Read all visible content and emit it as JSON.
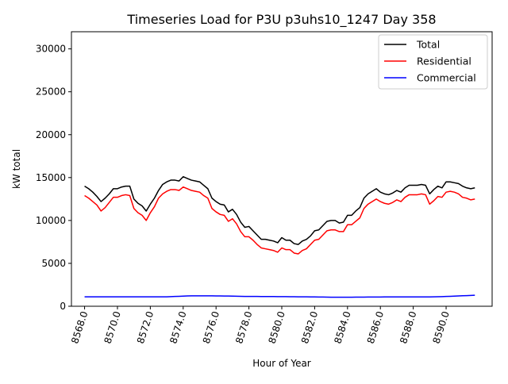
{
  "chart_data": {
    "type": "line",
    "title": "Timeseries Load for P3U p3uhs10_1247  Day 358",
    "xlabel": "Hour of Year",
    "ylabel": "kW total",
    "xlim": [
      8567.2,
      8592.8
    ],
    "ylim": [
      0,
      32000
    ],
    "x_ticks": [
      8568,
      8570,
      8572,
      8574,
      8576,
      8578,
      8580,
      8582,
      8584,
      8586,
      8588,
      8590
    ],
    "x_tick_labels": [
      "8568.0",
      "8570.0",
      "8572.0",
      "8574.0",
      "8576.0",
      "8578.0",
      "8580.0",
      "8582.0",
      "8584.0",
      "8586.0",
      "8588.0",
      "8590.0"
    ],
    "y_ticks": [
      0,
      5000,
      10000,
      15000,
      20000,
      25000,
      30000
    ],
    "y_tick_labels": [
      "0",
      "5000",
      "10000",
      "15000",
      "20000",
      "25000",
      "30000"
    ],
    "grid": false,
    "legend_position": "top-right",
    "x_start": 8568,
    "x_step": 0.25,
    "series": [
      {
        "name": "Total",
        "color": "#000000",
        "values": [
          14000,
          13700,
          13300,
          12800,
          12200,
          12600,
          13100,
          13700,
          13700,
          13900,
          14000,
          14000,
          12500,
          12000,
          11700,
          11100,
          11900,
          12600,
          13500,
          14200,
          14500,
          14700,
          14700,
          14600,
          15100,
          14900,
          14700,
          14600,
          14500,
          14100,
          13700,
          12600,
          12200,
          11900,
          11800,
          11000,
          11300,
          10700,
          9800,
          9200,
          9300,
          8800,
          8300,
          7800,
          7800,
          7700,
          7600,
          7400,
          8000,
          7700,
          7700,
          7300,
          7200,
          7600,
          7800,
          8200,
          8800,
          8900,
          9400,
          9900,
          10000,
          10000,
          9700,
          9800,
          10600,
          10600,
          11100,
          11500,
          12600,
          13100,
          13400,
          13700,
          13300,
          13100,
          13000,
          13200,
          13500,
          13300,
          13800,
          14100,
          14100,
          14100,
          14200,
          14100,
          13100,
          13600,
          14000,
          13800,
          14500,
          14500,
          14400,
          14300,
          14000,
          13800,
          13700,
          13800
        ],
        "values_in_steps_of_x_step": true
      },
      {
        "name": "Residential",
        "color": "#ff0000",
        "values": [
          12900,
          12600,
          12200,
          11800,
          11100,
          11500,
          12100,
          12700,
          12700,
          12900,
          13000,
          12900,
          11400,
          10900,
          10600,
          10000,
          10900,
          11600,
          12600,
          13100,
          13400,
          13600,
          13600,
          13500,
          13900,
          13700,
          13500,
          13400,
          13300,
          12900,
          12600,
          11400,
          11000,
          10700,
          10600,
          9900,
          10200,
          9600,
          8700,
          8100,
          8100,
          7700,
          7200,
          6800,
          6700,
          6600,
          6500,
          6300,
          6800,
          6600,
          6600,
          6200,
          6100,
          6500,
          6700,
          7200,
          7700,
          7800,
          8300,
          8800,
          8900,
          8900,
          8700,
          8700,
          9500,
          9500,
          9900,
          10300,
          11400,
          11900,
          12200,
          12500,
          12200,
          12000,
          11900,
          12100,
          12400,
          12200,
          12700,
          13000,
          13000,
          13000,
          13100,
          13000,
          11900,
          12300,
          12800,
          12700,
          13300,
          13400,
          13300,
          13100,
          12700,
          12600,
          12400,
          12500
        ],
        "values_in_steps_of_x_step": true
      },
      {
        "name": "Commercial",
        "color": "#0000ff",
        "values": [
          1100,
          1100,
          1100,
          1100,
          1100,
          1100,
          1100,
          1100,
          1100,
          1100,
          1100,
          1100,
          1100,
          1100,
          1100,
          1100,
          1100,
          1100,
          1100,
          1100,
          1100,
          1120,
          1140,
          1160,
          1180,
          1200,
          1210,
          1210,
          1210,
          1210,
          1210,
          1210,
          1200,
          1200,
          1190,
          1190,
          1180,
          1170,
          1160,
          1150,
          1150,
          1140,
          1140,
          1130,
          1130,
          1130,
          1130,
          1120,
          1120,
          1120,
          1110,
          1110,
          1100,
          1100,
          1100,
          1090,
          1090,
          1080,
          1070,
          1060,
          1050,
          1050,
          1050,
          1050,
          1050,
          1050,
          1060,
          1060,
          1060,
          1070,
          1070,
          1080,
          1080,
          1090,
          1090,
          1090,
          1090,
          1090,
          1090,
          1090,
          1090,
          1090,
          1090,
          1090,
          1090,
          1100,
          1110,
          1120,
          1140,
          1160,
          1180,
          1200,
          1220,
          1240,
          1260,
          1280
        ],
        "values_in_steps_of_x_step": true
      }
    ]
  }
}
